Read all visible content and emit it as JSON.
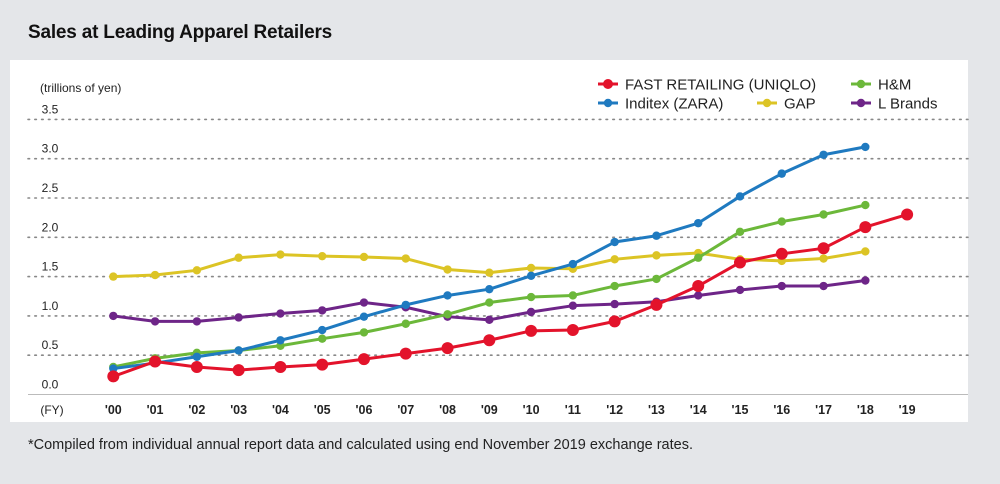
{
  "chart_data": {
    "type": "line",
    "title": "Sales at Leading Apparel Retailers",
    "ylabel": "(trillions of yen)",
    "xlabel": "(FY)",
    "ylim": [
      0,
      3.5
    ],
    "yticks": [
      "0.0",
      "0.5",
      "1.0",
      "1.5",
      "2.0",
      "2.5",
      "3.0",
      "3.5"
    ],
    "categories": [
      "'00",
      "'01",
      "'02",
      "'03",
      "'04",
      "'05",
      "'06",
      "'07",
      "'08",
      "'09",
      "'10",
      "'11",
      "'12",
      "'13",
      "'14",
      "'15",
      "'16",
      "'17",
      "'18",
      "'19"
    ],
    "grid": true,
    "legend_position": "top-right",
    "series": [
      {
        "name": "FAST RETAILING (UNIQLO)",
        "color": "#e3132b",
        "values": [
          0.23,
          0.42,
          0.35,
          0.31,
          0.35,
          0.38,
          0.45,
          0.52,
          0.59,
          0.69,
          0.81,
          0.82,
          0.93,
          1.14,
          1.38,
          1.68,
          1.79,
          1.86,
          2.13,
          2.29
        ]
      },
      {
        "name": "Inditex (ZARA)",
        "color": "#1f7ac0",
        "values": [
          0.33,
          0.4,
          0.48,
          0.56,
          0.69,
          0.82,
          0.99,
          1.14,
          1.26,
          1.34,
          1.51,
          1.66,
          1.94,
          2.02,
          2.18,
          2.52,
          2.81,
          3.05,
          3.15,
          null
        ]
      },
      {
        "name": "H&M",
        "color": "#6cb83a",
        "values": [
          0.35,
          0.46,
          0.53,
          0.56,
          0.62,
          0.71,
          0.79,
          0.9,
          1.02,
          1.17,
          1.24,
          1.26,
          1.38,
          1.47,
          1.74,
          2.07,
          2.2,
          2.29,
          2.41,
          null
        ]
      },
      {
        "name": "GAP",
        "color": "#dcc425",
        "values": [
          1.5,
          1.52,
          1.58,
          1.74,
          1.78,
          1.76,
          1.75,
          1.73,
          1.59,
          1.55,
          1.61,
          1.6,
          1.72,
          1.77,
          1.8,
          1.72,
          1.7,
          1.73,
          1.82,
          null
        ]
      },
      {
        "name": "L Brands",
        "color": "#6e2588",
        "values": [
          1.0,
          0.93,
          0.93,
          0.98,
          1.03,
          1.07,
          1.17,
          1.11,
          0.99,
          0.95,
          1.05,
          1.13,
          1.15,
          1.18,
          1.26,
          1.33,
          1.38,
          1.38,
          1.45,
          null
        ]
      }
    ],
    "footnote": "*Compiled from individual annual report data and calculated using end November 2019 exchange rates."
  }
}
